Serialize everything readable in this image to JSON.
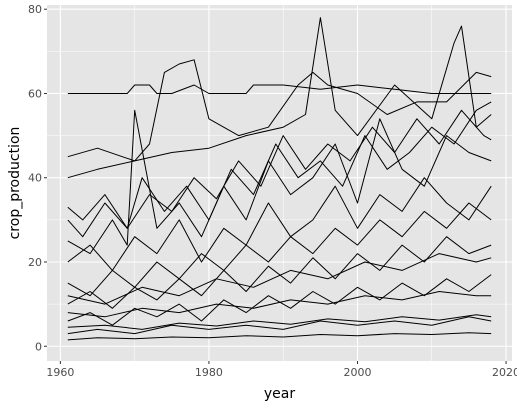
{
  "chart_data": {
    "type": "line",
    "title": "",
    "xlabel": "year",
    "ylabel": "crop_production",
    "xlim": [
      1958.2,
      2020.8
    ],
    "ylim": [
      -3.5,
      81.0
    ],
    "x_ticks": [
      1960,
      1980,
      2000,
      2020
    ],
    "x_tick_labels": [
      "1960",
      "1980",
      "2000",
      "2020"
    ],
    "y_ticks": [
      0,
      20,
      40,
      60,
      80
    ],
    "y_tick_labels": [
      "0",
      "20",
      "40",
      "60",
      "80"
    ],
    "x_range": [
      1961,
      2018
    ],
    "grid": true,
    "legend": "none",
    "colors": {
      "panel_background": "#e5e5e5",
      "grid": "#ffffff",
      "line": "#000000"
    },
    "series": [
      {
        "x": [
          1961,
          1969,
          1970,
          1972,
          1973,
          1975,
          1978,
          1980,
          1985,
          1986,
          1990,
          1995,
          2000,
          2005,
          2010,
          2015,
          2018
        ],
        "values": [
          60,
          60,
          62,
          62,
          60,
          60,
          62,
          60,
          60,
          62,
          62,
          61,
          62,
          61,
          60,
          60,
          60
        ]
      },
      {
        "x": [
          1961,
          1965,
          1970,
          1972,
          1974,
          1976,
          1978,
          1980,
          1984,
          1988,
          1992,
          1994,
          1996,
          2000,
          2004,
          2008,
          2012,
          2016,
          2018
        ],
        "values": [
          45,
          47,
          44,
          48,
          65,
          67,
          68,
          54,
          50,
          52,
          62,
          65,
          62,
          60,
          55,
          58,
          58,
          65,
          64
        ]
      },
      {
        "x": [
          1961,
          1965,
          1970,
          1975,
          1980,
          1985,
          1990,
          1993,
          1995,
          1997,
          2000,
          2005,
          2010,
          2013,
          2014,
          2016,
          2018
        ],
        "values": [
          40,
          42,
          44,
          46,
          47,
          50,
          52,
          55,
          78,
          56,
          50,
          62,
          54,
          72,
          76,
          52,
          55
        ]
      },
      {
        "x": [
          1961,
          1963,
          1966,
          1969,
          1971,
          1974,
          1977,
          1980,
          1983,
          1986,
          1989,
          1992,
          1995,
          1998,
          2001,
          2004,
          2007,
          2010,
          2013,
          2016,
          2018
        ],
        "values": [
          33,
          30,
          36,
          28,
          40,
          32,
          38,
          30,
          42,
          36,
          48,
          40,
          44,
          38,
          50,
          42,
          46,
          52,
          48,
          56,
          58
        ]
      },
      {
        "x": [
          1961,
          1964,
          1967,
          1969,
          1970,
          1973,
          1976,
          1979,
          1982,
          1985,
          1988,
          1991,
          1994,
          1997,
          2000,
          2003,
          2006,
          2009,
          2012,
          2015,
          2018
        ],
        "values": [
          25,
          22,
          30,
          24,
          56,
          28,
          34,
          26,
          38,
          30,
          44,
          36,
          40,
          48,
          34,
          54,
          42,
          38,
          50,
          46,
          44
        ]
      },
      {
        "x": [
          1961,
          1964,
          1967,
          1970,
          1973,
          1976,
          1979,
          1982,
          1985,
          1988,
          1991,
          1994,
          1997,
          2000,
          2003,
          2006,
          2009,
          2012,
          2015,
          2018
        ],
        "values": [
          20,
          24,
          18,
          26,
          22,
          30,
          20,
          28,
          24,
          34,
          26,
          30,
          38,
          28,
          36,
          32,
          40,
          34,
          30,
          38
        ]
      },
      {
        "x": [
          1961,
          1964,
          1967,
          1970,
          1973,
          1976,
          1979,
          1982,
          1985,
          1988,
          1991,
          1994,
          1997,
          2000,
          2003,
          2006,
          2009,
          2012,
          2015,
          2018
        ],
        "values": [
          15,
          12,
          18,
          14,
          20,
          16,
          22,
          18,
          24,
          20,
          26,
          22,
          28,
          24,
          30,
          26,
          32,
          28,
          34,
          30
        ]
      },
      {
        "x": [
          1961,
          1964,
          1967,
          1970,
          1973,
          1976,
          1979,
          1982,
          1985,
          1988,
          1991,
          1994,
          1997,
          2000,
          2003,
          2006,
          2009,
          2012,
          2015,
          2018
        ],
        "values": [
          10,
          13,
          9,
          14,
          11,
          16,
          12,
          18,
          13,
          19,
          15,
          21,
          16,
          22,
          18,
          24,
          20,
          26,
          22,
          24
        ]
      },
      {
        "x": [
          1961,
          1964,
          1967,
          1970,
          1973,
          1976,
          1979,
          1982,
          1985,
          1988,
          1991,
          1994,
          1997,
          2000,
          2003,
          2006,
          2009,
          2012,
          2015,
          2018
        ],
        "values": [
          6,
          8,
          5,
          9,
          7,
          10,
          6,
          11,
          8,
          12,
          9,
          13,
          10,
          14,
          11,
          15,
          12,
          16,
          13,
          17
        ]
      },
      {
        "x": [
          1961,
          1965,
          1970,
          1975,
          1980,
          1985,
          1990,
          1995,
          2000,
          2005,
          2010,
          2015,
          2018
        ],
        "values": [
          3,
          4,
          3,
          5,
          4,
          5,
          4,
          6,
          5,
          6,
          5,
          7,
          6
        ]
      },
      {
        "x": [
          1961,
          1965,
          1970,
          1975,
          1980,
          1985,
          1990,
          1995,
          2000,
          2005,
          2010,
          2015,
          2018
        ],
        "values": [
          1.5,
          2,
          1.8,
          2.2,
          2,
          2.5,
          2.2,
          2.8,
          2.5,
          3,
          2.8,
          3.2,
          3
        ]
      },
      {
        "x": [
          1961,
          1963,
          1966,
          1969,
          1972,
          1975,
          1978,
          1981,
          1984,
          1987,
          1990,
          1993,
          1996,
          1999,
          2002,
          2005,
          2008,
          2011,
          2014,
          2017,
          2018
        ],
        "values": [
          30,
          26,
          34,
          28,
          36,
          32,
          40,
          35,
          44,
          38,
          50,
          42,
          48,
          44,
          52,
          46,
          54,
          48,
          56,
          50,
          49
        ]
      },
      {
        "x": [
          1961,
          1966,
          1971,
          1976,
          1981,
          1986,
          1991,
          1996,
          2001,
          2006,
          2011,
          2016,
          2018
        ],
        "values": [
          12,
          10,
          14,
          12,
          16,
          14,
          18,
          16,
          20,
          18,
          22,
          20,
          21
        ]
      },
      {
        "x": [
          1961,
          1966,
          1971,
          1976,
          1981,
          1986,
          1991,
          1996,
          2001,
          2006,
          2011,
          2016,
          2018
        ],
        "values": [
          8,
          7,
          9,
          8,
          10,
          9,
          11,
          10,
          12,
          11,
          13,
          12,
          12
        ]
      },
      {
        "x": [
          1961,
          1966,
          1971,
          1976,
          1981,
          1986,
          1991,
          1996,
          2001,
          2006,
          2011,
          2016,
          2018
        ],
        "values": [
          4.5,
          5,
          4,
          5.5,
          4.8,
          6,
          5.2,
          6.5,
          5.8,
          7,
          6.2,
          7.5,
          7
        ]
      }
    ]
  }
}
